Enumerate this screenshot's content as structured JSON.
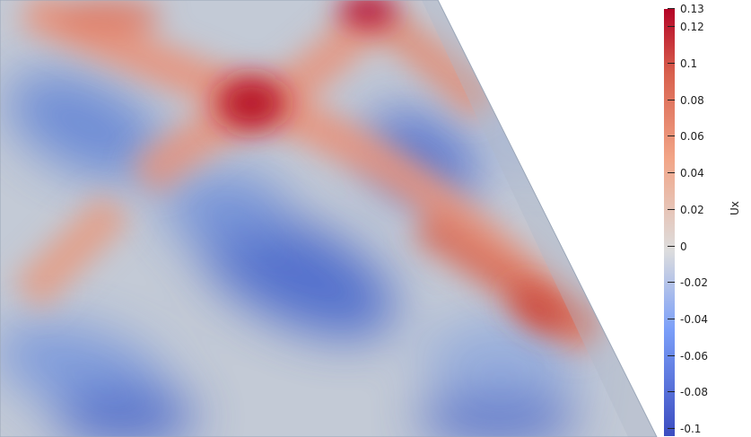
{
  "colorbar": {
    "title": "Ux",
    "range": [
      -0.1,
      0.13
    ],
    "colormap": [
      "#3b4cc0",
      "#dddddd",
      "#b40426"
    ],
    "ticks": [
      "0.13",
      "0.12",
      "0.1",
      "0.08",
      "0.06",
      "0.04",
      "0.02",
      "0",
      "-0.02",
      "-0.04",
      "-0.06",
      "-0.08",
      "-0.1"
    ],
    "tick_values": [
      0.13,
      0.12,
      0.1,
      0.08,
      0.06,
      0.04,
      0.02,
      0,
      -0.02,
      -0.04,
      -0.06,
      -0.08,
      -0.1
    ]
  }
}
